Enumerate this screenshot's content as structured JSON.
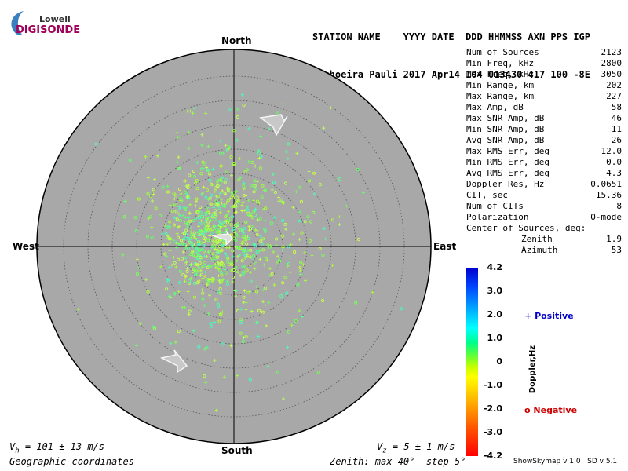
{
  "logo": {
    "line1": "Lowell",
    "line2": "DIGISONDE"
  },
  "header": {
    "labels_line": "STATION NAME    YYYY DATE  DDD HHMMSS AXN PPS IGP",
    "values_line": "Cachoeira Pauli 2017 Apr14 104 013430 417 100 -8E"
  },
  "compass": {
    "north": "North",
    "south": "South",
    "east": "East",
    "west": "West"
  },
  "stats": [
    {
      "label": "Num of Sources",
      "value": "2123"
    },
    {
      "label": "Min Freq, kHz",
      "value": "2800"
    },
    {
      "label": "Max Freq, kHz",
      "value": "3050"
    },
    {
      "label": "Min Range, km",
      "value": "202"
    },
    {
      "label": "Max Range, km",
      "value": "227"
    },
    {
      "label": "Max Amp, dB",
      "value": "58"
    },
    {
      "label": "Max SNR Amp, dB",
      "value": "46"
    },
    {
      "label": "Min SNR Amp, dB",
      "value": "11"
    },
    {
      "label": "Avg SNR Amp, dB",
      "value": "26"
    },
    {
      "label": "Max RMS Err, deg",
      "value": "12.0"
    },
    {
      "label": "Min RMS Err, deg",
      "value": "0.0"
    },
    {
      "label": "Avg RMS Err, deg",
      "value": "4.3"
    },
    {
      "label": "Doppler Res, Hz",
      "value": "0.0651"
    },
    {
      "label": "CIT, sec",
      "value": "15.36"
    },
    {
      "label": "Num of CITs",
      "value": "8"
    },
    {
      "label": "Polarization",
      "value": "O-mode"
    }
  ],
  "center": {
    "title": "Center of Sources, deg:",
    "zenith_label": "Zenith",
    "zenith_value": "1.9",
    "azimuth_label": "Azimuth",
    "azimuth_value": "53"
  },
  "colorbar": {
    "ticks": [
      "4.2",
      "3.0",
      "2.0",
      "1.0",
      "0",
      "-1.0",
      "-2.0",
      "-3.0",
      "-4.2"
    ],
    "label": "Doppler,Hz"
  },
  "legend": {
    "positive": "Positive",
    "negative": "Negative",
    "positive_symbol": "+",
    "negative_symbol": "o"
  },
  "bottom": {
    "vh_label": "V",
    "vh_sub": "h",
    "vh_value": " = 101 ± 13 m/s",
    "vz_label": "V",
    "vz_sub": "z",
    "vz_value": " = 5 ± 1 m/s",
    "coords": "Geographic coordinates",
    "zenith_info": "Zenith: max 40°  step 5°",
    "version": "ShowSkymap v 1.0   SD v 5.1"
  },
  "colors": {
    "disc": "#a8a8a8",
    "ring": "#666666",
    "positive": "#0000cc",
    "negative": "#cc0000"
  }
}
